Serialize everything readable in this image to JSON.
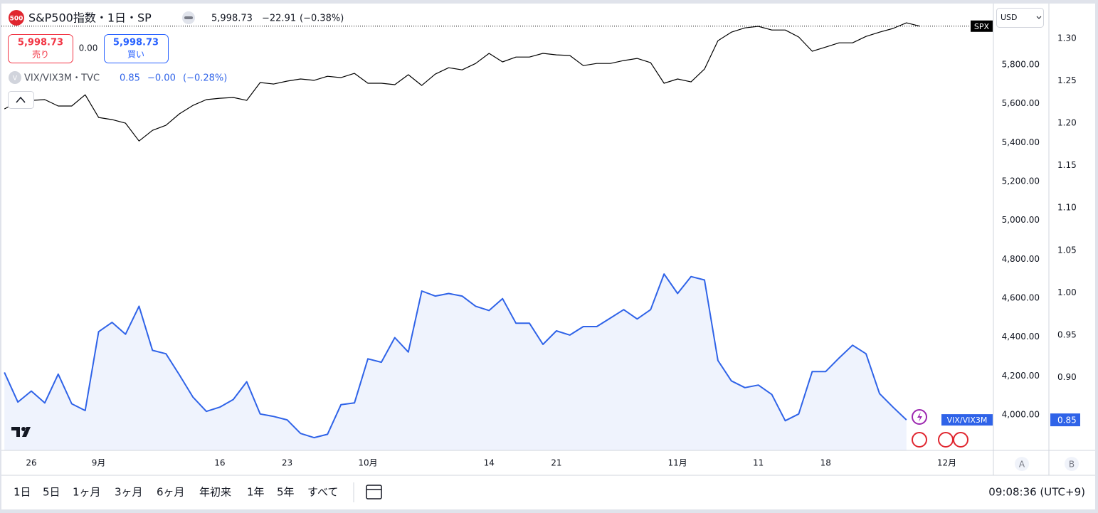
{
  "ui": {
    "logo": "500",
    "header": {
      "symbol": "S&P500指数・1日・SP",
      "price": "5,998.73",
      "change": "−22.91",
      "change_pct": "(−0.38%)"
    },
    "trade": {
      "sell": {
        "price": "5,998.73",
        "label": "売り"
      },
      "spread": "0.00",
      "buy": {
        "price": "5,998.73",
        "label": "買い"
      }
    },
    "legend": {
      "icon": "V",
      "symbol": "VIX/VIX3M・TVC",
      "change": "−0.00",
      "change_pct": "(−0.28%)"
    },
    "currency": "USD",
    "scale_buttons": [
      "A",
      "B"
    ],
    "ranges": [
      "1日",
      "5日",
      "1ヶ月",
      "3ヶ月",
      "6ヶ月",
      "年初来",
      "1年",
      "5年",
      "すべて"
    ],
    "clock": "09:08:36 (UTC+9)"
  },
  "chart_data": {
    "type": "line",
    "categories": [
      null,
      null,
      "26",
      null,
      null,
      null,
      null,
      "9月",
      null,
      null,
      null,
      null,
      null,
      null,
      null,
      null,
      "16",
      null,
      null,
      null,
      null,
      "23",
      null,
      null,
      null,
      null,
      null,
      "10月",
      null,
      null,
      null,
      null,
      null,
      null,
      null,
      null,
      "14",
      null,
      null,
      null,
      null,
      "21",
      null,
      null,
      null,
      null,
      null,
      null,
      null,
      null,
      "11月",
      null,
      null,
      null,
      null,
      null,
      "11",
      null,
      null,
      null,
      null,
      "18",
      null,
      null,
      null,
      null,
      null,
      null,
      null,
      null,
      "12月"
    ],
    "series": [
      {
        "name": "SPX",
        "color": "#000000",
        "style": "line",
        "axis": "y",
        "values": [
          5573,
          5610,
          5617,
          5621,
          5588,
          5588,
          5646,
          5529,
          5518,
          5500,
          5408,
          5463,
          5489,
          5548,
          5591,
          5621,
          5628,
          5632,
          5617,
          5709,
          5701,
          5716,
          5727,
          5720,
          5741,
          5734,
          5756,
          5705,
          5705,
          5698,
          5749,
          5694,
          5752,
          5785,
          5774,
          5807,
          5859,
          5815,
          5840,
          5840,
          5859,
          5851,
          5848,
          5796,
          5807,
          5807,
          5822,
          5833,
          5811,
          5705,
          5727,
          5712,
          5778,
          5924,
          5968,
          5990,
          5998,
          5979,
          5979,
          5943,
          5870,
          5891,
          5913,
          5913,
          5946,
          5968,
          5987,
          6016,
          5998.73,
          null,
          null
        ]
      },
      {
        "name": "VIX/VIX3M",
        "color": "#2f63e8",
        "style": "area",
        "axis": "y2",
        "values": [
          0.906,
          0.871,
          0.884,
          0.87,
          0.904,
          0.869,
          0.861,
          0.954,
          0.965,
          0.951,
          0.984,
          0.932,
          0.928,
          0.903,
          0.877,
          0.86,
          0.865,
          0.874,
          0.895,
          0.857,
          0.854,
          0.85,
          0.834,
          0.829,
          0.833,
          0.868,
          0.87,
          0.922,
          0.918,
          0.947,
          0.93,
          1.002,
          0.996,
          0.999,
          0.996,
          0.984,
          0.979,
          0.993,
          0.964,
          0.964,
          0.939,
          0.955,
          0.95,
          0.96,
          0.96,
          0.97,
          0.98,
          0.969,
          0.98,
          1.022,
          0.999,
          1.019,
          1.015,
          0.92,
          0.896,
          0.888,
          0.891,
          0.88,
          0.849,
          0.857,
          0.907,
          0.907,
          0.923,
          0.938,
          0.928,
          0.881,
          0.865,
          0.85,
          null,
          null,
          null
        ]
      }
    ],
    "ylim": [
      3817,
      6115
    ],
    "yticks": [
      {
        "value": 4000,
        "label": "4,000.00"
      },
      {
        "value": 4200,
        "label": "4,200.00"
      },
      {
        "value": 4400,
        "label": "4,400.00"
      },
      {
        "value": 4600,
        "label": "4,600.00"
      },
      {
        "value": 4800,
        "label": "4,800.00"
      },
      {
        "value": 5000,
        "label": "5,000.00"
      },
      {
        "value": 5200,
        "label": "5,200.00"
      },
      {
        "value": 5400,
        "label": "5,400.00"
      },
      {
        "value": 5600,
        "label": "5,600.00"
      },
      {
        "value": 5800,
        "label": "5,800.00"
      }
    ],
    "y2lim": [
      0.814,
      1.341
    ],
    "y2ticks": [
      {
        "value": 0.9,
        "label": "0.90"
      },
      0.95,
      {
        "value": 1.0,
        "label": "1.00"
      },
      1.05,
      {
        "value": 1.1,
        "label": "1.10"
      },
      1.15,
      {
        "value": 1.2,
        "label": "1.20"
      },
      1.25,
      {
        "value": 1.3,
        "label": "1.30"
      }
    ],
    "grid": false
  }
}
